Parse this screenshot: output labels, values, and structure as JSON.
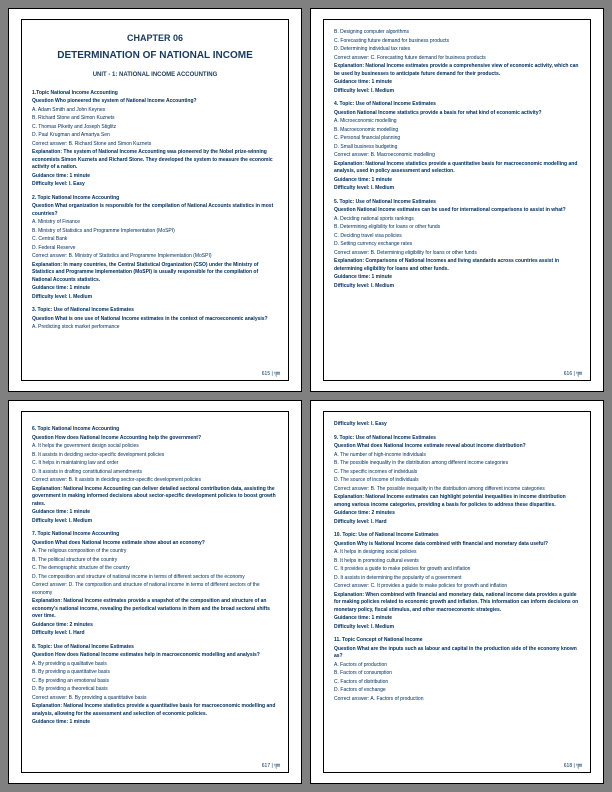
{
  "header": {
    "chapter": "CHAPTER 06",
    "title": "DETERMINATION OF NATIONAL INCOME",
    "unit": "UNIT - 1: NATIONAL INCOME ACCOUNTING"
  },
  "pages": {
    "p1": {
      "q1": {
        "topic": "1.Topic National Income Accounting",
        "q": "Question Who pioneered the system of National Income Accounting?",
        "a": "A. Adam Smith and John Keynes",
        "b": "B. Richard Stone and Simon Kuznets",
        "c": "C. Thomas Piketty and Joseph Stiglitz",
        "d": "D. Paul Krugman and Amartya Sen",
        "ans": "Correct answer: B. Richard Stone and Simon Kuznets",
        "exp": "Explanation: The system of National Income Accounting was pioneered by the Nobel prize-winning economists Simon Kuznets and Richard Stone. They developed the system to measure the economic activity of a nation.",
        "gt": "Guidance time: 1 minute",
        "diff": "Difficulty level: I. Easy"
      },
      "q2": {
        "topic": "2. Topic National Income Accounting",
        "q": "Question What organization is responsible for the compilation of National Accounts statistics in most countries?",
        "a": "A. Ministry of Finance",
        "b": "B. Ministry of Statistics and Programme Implementation (MoSPI)",
        "c": "C. Central Bank",
        "d": "D. Federal Reserve",
        "ans": "Correct answer: B. Ministry of Statistics and Programme Implementation (MoSPI)",
        "exp": "Explanation: In many countries, the Central Statistical Organization (CSO) under the Ministry of Statistics and Programme Implementation (MoSPI) is usually responsible for the compilation of National Accounts statistics.",
        "gt": "Guidance time: 1 minute",
        "diff": "Difficulty level: I. Medium"
      },
      "q3": {
        "topic": "3. Topic: Use of National Income Estimates",
        "q": "Question What is one use of National Income estimates in the context of macroeconomic analysis?",
        "a": "A. Predicting stock market performance"
      },
      "pageno": "615 | पृष्ठ"
    },
    "p2": {
      "q3b": {
        "b": "B. Designing computer algorithms",
        "c": "C. Forecasting future demand for business products",
        "d": "D. Determining individual tax rates",
        "ans": "Correct answer: C. Forecasting future demand for business products",
        "exp": "Explanation: National Income estimates provide a comprehensive view of economic activity, which can be used by businesses to anticipate future demand for their products.",
        "gt": "Guidance time: 1 minute",
        "diff": "Difficulty level: I. Medium"
      },
      "q4": {
        "topic": "4. Topic: Use of National Income Estimates",
        "q": "Question National Income statistics provide a basis for what kind of economic activity?",
        "a": "A. Microeconomic modelling",
        "b": "B. Macroeconomic modelling",
        "c": "C. Personal financial planning",
        "d": "D. Small business budgeting",
        "ans": "Correct answer: B. Macroeconomic modelling",
        "exp": "Explanation: National Income statistics provide a quantitative basis for macroeconomic modelling and analysis, used in policy assessment and selection.",
        "gt": "Guidance time: 1 minute",
        "diff": "Difficulty level: I. Medium"
      },
      "q5": {
        "topic": "5. Topic: Use of National Income Estimates",
        "q": "Question National Income estimates can be used for international comparisons to assist in what?",
        "a": "A. Deciding national sports rankings",
        "b": "B. Determining eligibility for loans or other funds",
        "c": "C. Deciding travel visa policies",
        "d": "D. Setting currency exchange rates",
        "ans": "Correct answer: B. Determining eligibility for loans or other funds",
        "exp": "Explanation: Comparisons of National Incomes and living standards across countries assist in determining eligibility for loans and other funds.",
        "gt": "Guidance time: 1 minute",
        "diff": "Difficulty level: I. Medium"
      },
      "pageno": "616 | पृष्ठ"
    },
    "p3": {
      "q6": {
        "topic": "6. Topic National Income Accounting",
        "q": "Question How does National Income Accounting help the government?",
        "a": "A. It helps the government design social policies",
        "b": "B. It assists in deciding sector-specific development policies",
        "c": "C. It helps in maintaining law and order",
        "d": "D. It assists in drafting constitutional amendments",
        "ans": "Correct answer: B. It assists in deciding sector-specific development policies",
        "exp": "Explanation: National Income Accounting can deliver detailed sectoral contribution data, assisting the government in making informed decisions about sector-specific development policies to boost growth rates.",
        "gt": "Guidance time: 1 minute",
        "diff": "Difficulty level: I. Medium"
      },
      "q7": {
        "topic": "7. Topic National Income Accounting",
        "q": "Question What does National Income estimate show about an economy?",
        "a": "A. The religious composition of the country",
        "b": "B. The political structure of the country",
        "c": "C. The demographic structure of the country",
        "d": "D. The composition and structure of national income in terms of different sectors of the economy",
        "ans": "Correct answer: D. The composition and structure of national income in terms of different sectors of the economy",
        "exp": "Explanation: National Income estimates provide a snapshot of the composition and structure of an economy's national income, revealing the periodical variations in them and the broad sectoral shifts over time.",
        "gt": "Guidance time: 2 minutes",
        "diff": "Difficulty level: I. Hard"
      },
      "q8": {
        "topic": "8. Topic: Use of National Income Estimates",
        "q": "Question How does National Income estimates help in macroeconomic modelling and analysis?",
        "a": "A. By providing a qualitative basis",
        "b": "B. By providing a quantitative basis",
        "c": "C. By providing an emotional basis",
        "d": "D. By providing a theoretical basis",
        "ans": "Correct answer: B. By providing a quantitative basis",
        "exp": "Explanation: National Income statistics provide a quantitative basis for macroeconomic modelling and analysis, allowing for the assessment and selection of economic policies.",
        "gt": "Guidance time: 1 minute"
      },
      "pageno": "617 | पृष्ठ"
    },
    "p4": {
      "q8b": {
        "diff": "Difficulty level: I. Easy"
      },
      "q9": {
        "topic": "9. Topic: Use of National Income Estimates",
        "q": "Question What does National Income estimate reveal about income distribution?",
        "a": "A. The number of high-income individuals",
        "b": "B. The possible inequality in the distribution among different income categories",
        "c": "C. The specific incomes of individuals",
        "d": "D. The source of income of individuals",
        "ans": "Correct answer: B. The possible inequality in the distribution among different income categories",
        "exp": "Explanation: National Income estimates can highlight potential inequalities in income distribution among various income categories, providing a basis for policies to address these disparities.",
        "gt": "Guidance time: 2 minutes",
        "diff": "Difficulty level: I. Hard"
      },
      "q10": {
        "topic": "10. Topic: Use of National Income Estimates",
        "q": "Question Why is National Income data combined with financial and monetary data useful?",
        "a": "A. It helps in designing social policies",
        "b": "B. It helps in promoting cultural events",
        "c": "C. It provides a guide to make policies for growth and inflation",
        "d": "D. It assists in determining the popularity of a government",
        "ans": "Correct answer: C. It provides a guide to make policies for growth and inflation",
        "exp": "Explanation: When combined with financial and monetary data, national income data provides a guide for making policies related to economic growth and inflation. This information can inform decisions on monetary policy, fiscal stimulus, and other macroeconomic strategies.",
        "gt": "Guidance time: 1 minute",
        "diff": "Difficulty level: I. Medium"
      },
      "q11": {
        "topic": "11. Topic Concept of National Income",
        "q": "Question What are the inputs such as labour and capital in the production side of the economy known as?",
        "a": "A. Factors of production",
        "b": "B. Factors of consumption",
        "c": "C. Factors of distribution",
        "d": "D. Factors of exchange",
        "ans": "Correct answer: A. Factors of production"
      },
      "pageno": "618 | पृष्ठ"
    }
  }
}
